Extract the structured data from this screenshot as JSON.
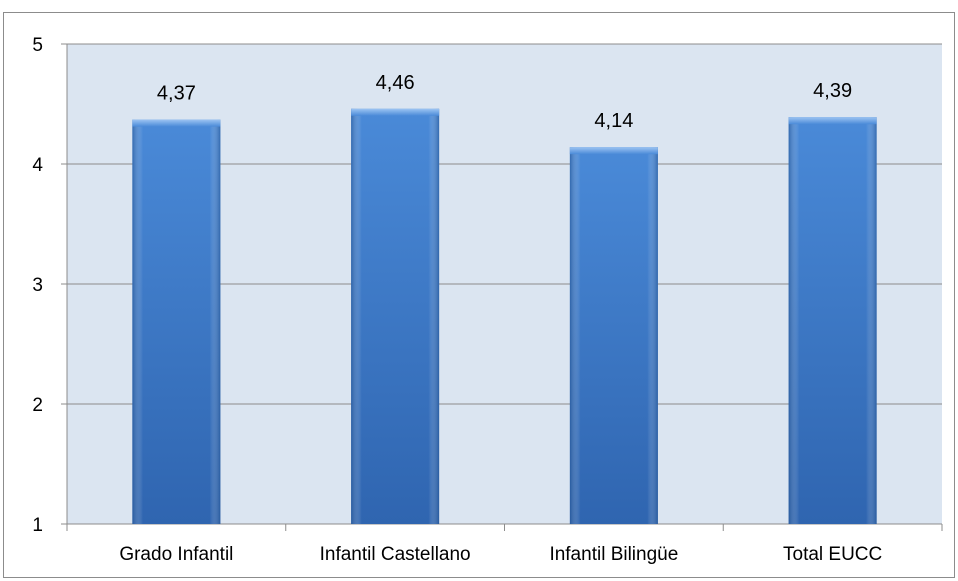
{
  "chart_data": {
    "type": "bar",
    "categories": [
      "Grado Infantil",
      "Infantil Castellano",
      "Infantil Bilingüe",
      "Total EUCC"
    ],
    "values": [
      4.37,
      4.46,
      4.14,
      4.39
    ],
    "value_labels": [
      "4,37",
      "4,46",
      "4,14",
      "4,39"
    ],
    "yticks": [
      1,
      2,
      3,
      4,
      5
    ],
    "ylim": [
      1,
      5
    ],
    "grid": true,
    "legend": "none",
    "title": "",
    "xlabel": "",
    "ylabel": ""
  },
  "colors": {
    "plot_background": "#dbe5f1",
    "bar_light": "#5f9be0",
    "bar_mid": "#3d78c9",
    "bar_dark": "#2a5ba0",
    "gridline": "#8c8c8c"
  }
}
